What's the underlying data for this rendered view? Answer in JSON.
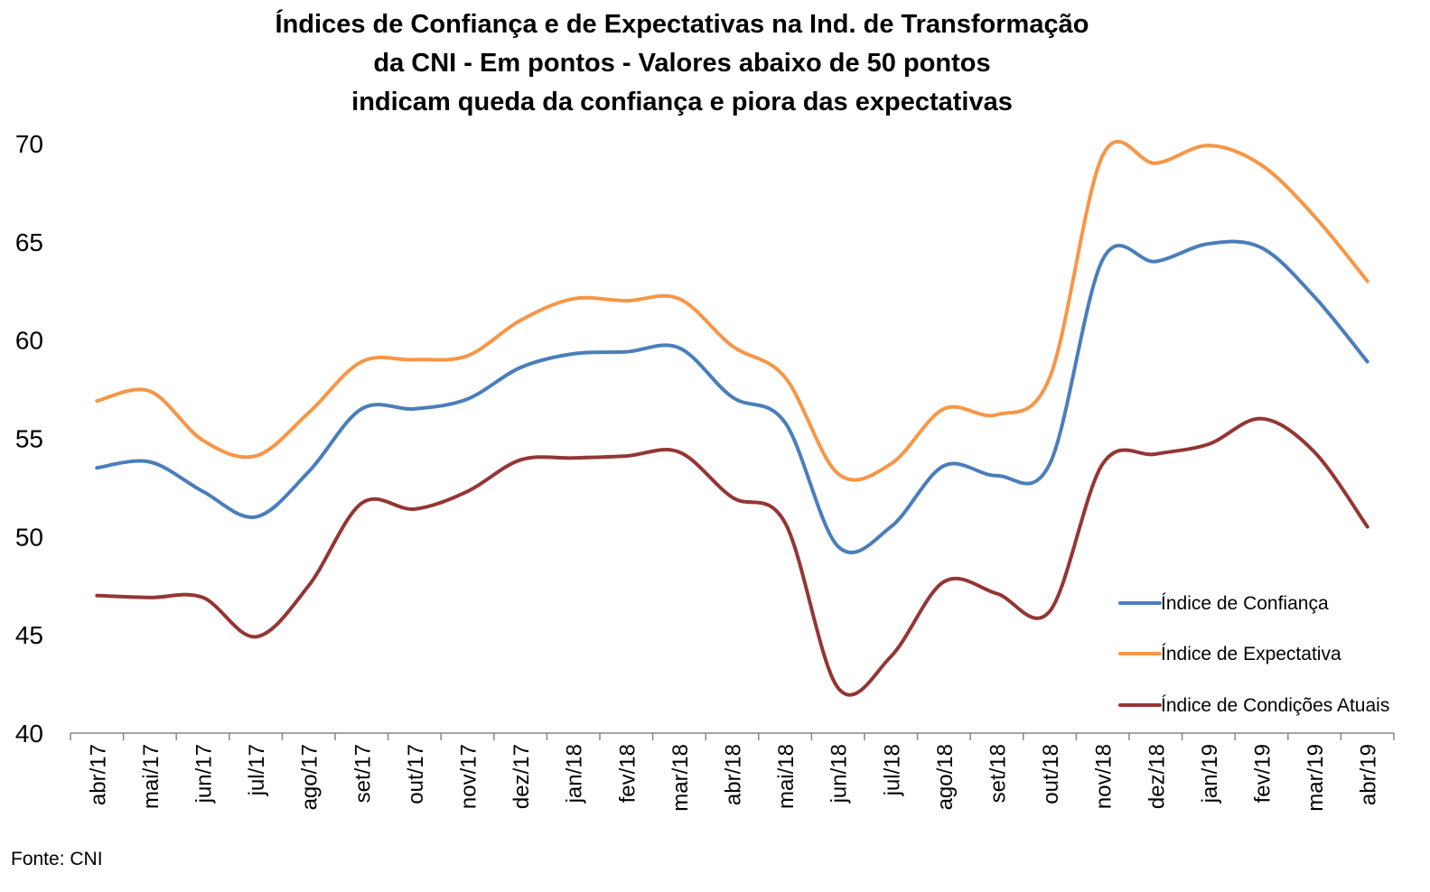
{
  "chart_data": {
    "type": "line",
    "title_lines": [
      "Índices de Confiança e de Expectativas na Ind. de Transformação",
      "da CNI - Em pontos - Valores abaixo de 50 pontos",
      "indicam queda da confiança e piora das expectativas"
    ],
    "categories": [
      "abr/17",
      "mai/17",
      "jun/17",
      "jul/17",
      "ago/17",
      "set/17",
      "out/17",
      "nov/17",
      "dez/17",
      "jan/18",
      "fev/18",
      "mar/18",
      "abr/18",
      "mai/18",
      "jun/18",
      "jul/18",
      "ago/18",
      "set/18",
      "out/18",
      "nov/18",
      "dez/18",
      "jan/19",
      "fev/19",
      "mar/19",
      "abr/19"
    ],
    "yticks": [
      "40",
      "45",
      "50",
      "55",
      "60",
      "65",
      "70"
    ],
    "ylim": [
      40,
      70
    ],
    "grid": false,
    "legend_position": "right",
    "series": [
      {
        "name": "Índice de Confiança",
        "color": "#4a7ebb",
        "values": [
          53.5,
          53.8,
          52.3,
          51.0,
          53.3,
          56.5,
          56.5,
          57.0,
          58.6,
          59.3,
          59.4,
          59.6,
          57.1,
          55.8,
          49.5,
          50.5,
          53.6,
          53.1,
          53.7,
          64.1,
          64.0,
          64.9,
          64.7,
          62.2,
          58.9
        ]
      },
      {
        "name": "Índice de Expectativa",
        "color": "#f79646",
        "values": [
          56.9,
          57.4,
          54.9,
          54.1,
          56.3,
          58.9,
          59.0,
          59.2,
          61.0,
          62.1,
          62.0,
          62.1,
          59.7,
          58.1,
          53.2,
          53.7,
          56.5,
          56.2,
          58.1,
          69.4,
          69.0,
          69.9,
          68.9,
          66.3,
          63.0
        ]
      },
      {
        "name": "Índice de Condições Atuais",
        "color": "#943634",
        "values": [
          47.0,
          46.9,
          46.9,
          44.9,
          47.5,
          51.7,
          51.4,
          52.3,
          53.9,
          54.0,
          54.1,
          54.3,
          52.0,
          50.7,
          42.3,
          43.9,
          47.7,
          47.1,
          46.2,
          53.7,
          54.2,
          54.7,
          56.0,
          54.3,
          50.5
        ]
      }
    ],
    "source": "Fonte: CNI"
  }
}
